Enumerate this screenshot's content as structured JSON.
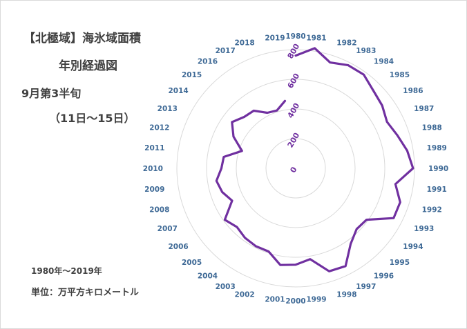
{
  "title_line1": "【北極域】海氷域面積",
  "title_line2": "年別経過図",
  "subtitle_line1": "9月第3半旬",
  "subtitle_line2": "（11日～15日）",
  "period_note": "1980年～2019年",
  "unit_note": "単位：万平方キロメートル",
  "colors": {
    "series": "#7030a0",
    "category_label": "#3f6a96",
    "grid": "#d9d9d9",
    "text": "#404040"
  },
  "chart_data": {
    "type": "radar",
    "categories": [
      "1980",
      "1981",
      "1982",
      "1983",
      "1984",
      "1985",
      "1986",
      "1987",
      "1988",
      "1989",
      "1990",
      "1991",
      "1992",
      "1993",
      "1994",
      "1995",
      "1996",
      "1997",
      "1998",
      "1999",
      "2000",
      "2001",
      "2002",
      "2003",
      "2004",
      "2005",
      "2006",
      "2007",
      "2008",
      "2009",
      "2010",
      "2011",
      "2012",
      "2013",
      "2014",
      "2015",
      "2016",
      "2017",
      "2018",
      "2019"
    ],
    "series": [
      {
        "name": "海氷域面積",
        "values": [
          760,
          820,
          750,
          780,
          780,
          740,
          720,
          690,
          720,
          760,
          790,
          680,
          740,
          740,
          590,
          580,
          630,
          740,
          730,
          620,
          650,
          660,
          590,
          590,
          580,
          560,
          590,
          480,
          520,
          540,
          500,
          490,
          380,
          470,
          530,
          490,
          480,
          420,
          410,
          460
        ]
      }
    ],
    "radial_ticks": [
      "0",
      "200",
      "400",
      "600",
      "800"
    ],
    "rmax": 800,
    "grid": true,
    "legend": "none"
  }
}
